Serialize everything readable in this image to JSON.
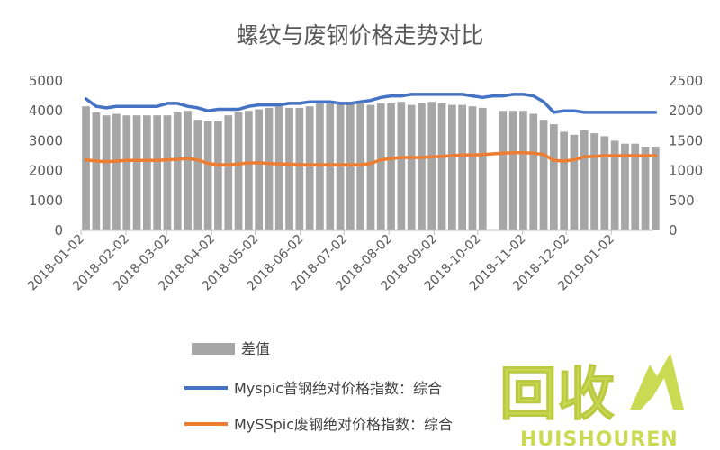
{
  "chart_data": {
    "type": "bar",
    "title": "螺纹与废钢价格走势对比",
    "x_tick_labels": [
      "2018-01-02",
      "2018-02-02",
      "2018-03-02",
      "2018-04-02",
      "2018-05-02",
      "2018-06-02",
      "2018-07-02",
      "2018-08-02",
      "2018-09-02",
      "2018-10-02",
      "2018-11-02",
      "2018-12-02",
      "2019-01-02"
    ],
    "y_left": {
      "min": 0,
      "max": 5000,
      "ticks": [
        "0",
        "1000",
        "2000",
        "3000",
        "4000",
        "5000"
      ]
    },
    "y_right": {
      "min": 0,
      "max": 2500,
      "ticks": [
        "0",
        "500",
        "1000",
        "1500",
        "2000",
        "2500"
      ]
    },
    "grid": false,
    "legend_position": "bottom",
    "x": [
      "2018-01-02",
      "2018-01-09",
      "2018-01-16",
      "2018-01-23",
      "2018-01-30",
      "2018-02-06",
      "2018-02-13",
      "2018-02-20",
      "2018-02-27",
      "2018-03-06",
      "2018-03-13",
      "2018-03-20",
      "2018-03-27",
      "2018-04-03",
      "2018-04-10",
      "2018-04-17",
      "2018-04-24",
      "2018-05-01",
      "2018-05-08",
      "2018-05-15",
      "2018-05-22",
      "2018-05-29",
      "2018-06-05",
      "2018-06-12",
      "2018-06-19",
      "2018-06-26",
      "2018-07-03",
      "2018-07-10",
      "2018-07-17",
      "2018-07-24",
      "2018-07-31",
      "2018-08-07",
      "2018-08-14",
      "2018-08-21",
      "2018-08-28",
      "2018-09-04",
      "2018-09-11",
      "2018-09-18",
      "2018-09-25",
      "2018-10-02",
      "2018-10-09",
      "2018-10-16",
      "2018-10-23",
      "2018-10-30",
      "2018-11-06",
      "2018-11-13",
      "2018-11-20",
      "2018-11-27",
      "2018-12-04",
      "2018-12-11",
      "2018-12-18",
      "2018-12-25",
      "2019-01-01",
      "2019-01-08",
      "2019-01-15",
      "2019-01-22",
      "2019-01-29"
    ],
    "series": [
      {
        "name": "差值",
        "type": "bar",
        "axis": "left",
        "color": "#a6a6a6",
        "values": [
          4150,
          3950,
          3850,
          3900,
          3850,
          3850,
          3850,
          3850,
          3850,
          3950,
          4000,
          3700,
          3650,
          3650,
          3850,
          3950,
          4000,
          4050,
          4100,
          4150,
          4100,
          4100,
          4150,
          4250,
          4300,
          4300,
          4300,
          4250,
          4200,
          4250,
          4250,
          4300,
          4200,
          4250,
          4300,
          4250,
          4200,
          4200,
          4150,
          4100,
          0,
          4000,
          4000,
          4000,
          3900,
          3700,
          3550,
          3300,
          3200,
          3350,
          3250,
          3150,
          3000,
          2900,
          2900,
          2800,
          2800
        ]
      },
      {
        "name": "Myspic普钢绝对价格指数：综合",
        "type": "line",
        "axis": "left",
        "color": "#4472c4",
        "values": [
          4400,
          4150,
          4100,
          4150,
          4150,
          4150,
          4150,
          4150,
          4250,
          4250,
          4150,
          4100,
          4000,
          4050,
          4050,
          4050,
          4150,
          4200,
          4200,
          4200,
          4250,
          4250,
          4300,
          4300,
          4300,
          4250,
          4250,
          4300,
          4350,
          4450,
          4500,
          4500,
          4550,
          4550,
          4550,
          4550,
          4550,
          4550,
          4500,
          4450,
          4500,
          4500,
          4550,
          4550,
          4500,
          4300,
          3950,
          4000,
          4000,
          3950,
          3950,
          3950,
          3950,
          3950,
          3950,
          3950,
          3950
        ]
      },
      {
        "name": "MySSpic废钢绝对价格指数：综合",
        "type": "line",
        "axis": "right",
        "color": "#ed7d31",
        "values": [
          1180,
          1160,
          1150,
          1160,
          1170,
          1170,
          1170,
          1170,
          1180,
          1190,
          1200,
          1180,
          1120,
          1100,
          1100,
          1110,
          1130,
          1130,
          1120,
          1110,
          1110,
          1100,
          1100,
          1100,
          1100,
          1100,
          1100,
          1100,
          1120,
          1180,
          1200,
          1220,
          1220,
          1220,
          1230,
          1240,
          1250,
          1260,
          1260,
          1270,
          1280,
          1290,
          1300,
          1300,
          1290,
          1270,
          1170,
          1160,
          1180,
          1230,
          1240,
          1250,
          1250,
          1250,
          1250,
          1250,
          1250
        ]
      }
    ]
  },
  "watermark": {
    "main": "回收",
    "sub": "HUISHOUREN",
    "color": "#c8d94a"
  }
}
